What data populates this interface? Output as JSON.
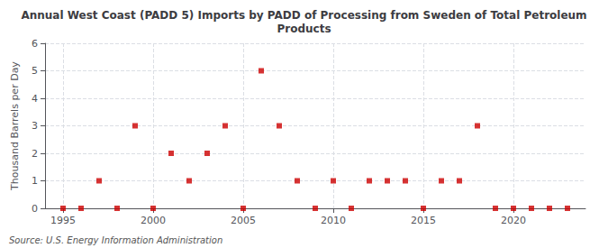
{
  "chart_data": {
    "type": "scatter",
    "title": "Annual West Coast (PADD 5) Imports by PADD of Processing from Sweden of Total Petroleum\nProducts",
    "ylabel": "Thousand Barrels per Day",
    "annotations": [
      "Source: U.S. Energy Information Administration"
    ],
    "x": [
      1995,
      1996,
      1997,
      1998,
      1999,
      2000,
      2001,
      2002,
      2003,
      2004,
      2005,
      2006,
      2007,
      2008,
      2009,
      2010,
      2011,
      2012,
      2013,
      2014,
      2015,
      2016,
      2017,
      2018,
      2019,
      2020,
      2021,
      2022,
      2023
    ],
    "values": [
      0,
      0,
      1,
      0,
      3,
      0,
      2,
      1,
      2,
      3,
      0,
      5,
      3,
      1,
      0,
      1,
      0,
      1,
      1,
      1,
      0,
      1,
      1,
      3,
      0,
      0,
      0,
      0,
      0
    ],
    "color": "#cc0000",
    "marker": "square",
    "xlim": [
      1994.0,
      2024.0
    ],
    "ylim": [
      0,
      6
    ],
    "xticks": [
      1995,
      2000,
      2005,
      2010,
      2015,
      2020
    ],
    "yticks": [
      0,
      1,
      2,
      3,
      4,
      5,
      6
    ],
    "grid": true
  }
}
